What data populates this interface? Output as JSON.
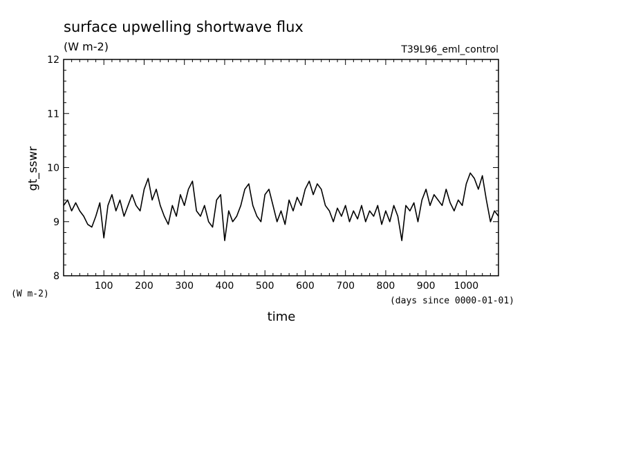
{
  "chart_data": {
    "type": "line",
    "title": "surface upwelling shortwave flux",
    "subtitle": "(W m-2)",
    "experiment": "T39L96_eml_control",
    "ylabel": "gt_sswr",
    "yunit": "(W m-2)",
    "xlabel": "time",
    "xunit": "(days since 0000-01-01)",
    "xlim": [
      0,
      1080
    ],
    "ylim": [
      8,
      12
    ],
    "x_ticks": [
      100,
      200,
      300,
      400,
      500,
      600,
      700,
      800,
      900,
      1000
    ],
    "y_ticks": [
      8,
      9,
      10,
      11,
      12
    ],
    "grid": false,
    "line_color": "#000000",
    "series": [
      {
        "x": [
          0,
          10,
          20,
          30,
          40,
          50,
          60,
          70,
          80,
          90,
          100,
          110,
          120,
          130,
          140,
          150,
          160,
          170,
          180,
          190,
          200,
          210,
          220,
          230,
          240,
          250,
          260,
          270,
          280,
          290,
          300,
          310,
          320,
          330,
          340,
          350,
          360,
          370,
          380,
          390,
          400,
          410,
          420,
          430,
          440,
          450,
          460,
          470,
          480,
          490,
          500,
          510,
          520,
          530,
          540,
          550,
          560,
          570,
          580,
          590,
          600,
          610,
          620,
          630,
          640,
          650,
          660,
          670,
          680,
          690,
          700,
          710,
          720,
          730,
          740,
          750,
          760,
          770,
          780,
          790,
          800,
          810,
          820,
          830,
          840,
          850,
          860,
          870,
          880,
          890,
          900,
          910,
          920,
          930,
          940,
          950,
          960,
          970,
          980,
          990,
          1000,
          1010,
          1020,
          1030,
          1040,
          1050,
          1060,
          1070,
          1080
        ],
        "values": [
          9.3,
          9.4,
          9.2,
          9.35,
          9.2,
          9.1,
          8.95,
          8.9,
          9.1,
          9.35,
          8.7,
          9.3,
          9.5,
          9.2,
          9.4,
          9.1,
          9.3,
          9.5,
          9.3,
          9.2,
          9.6,
          9.8,
          9.4,
          9.6,
          9.3,
          9.1,
          8.95,
          9.3,
          9.1,
          9.5,
          9.3,
          9.6,
          9.75,
          9.2,
          9.1,
          9.3,
          9.0,
          8.9,
          9.4,
          9.5,
          8.65,
          9.2,
          9.0,
          9.1,
          9.3,
          9.6,
          9.7,
          9.3,
          9.1,
          9.0,
          9.5,
          9.6,
          9.3,
          9.0,
          9.2,
          8.95,
          9.4,
          9.2,
          9.45,
          9.3,
          9.6,
          9.75,
          9.5,
          9.7,
          9.6,
          9.3,
          9.2,
          9.0,
          9.25,
          9.1,
          9.3,
          9.0,
          9.2,
          9.05,
          9.3,
          9.0,
          9.2,
          9.1,
          9.3,
          8.95,
          9.2,
          9.0,
          9.3,
          9.1,
          8.65,
          9.3,
          9.2,
          9.35,
          9.0,
          9.4,
          9.6,
          9.3,
          9.5,
          9.4,
          9.3,
          9.6,
          9.35,
          9.2,
          9.4,
          9.3,
          9.7,
          9.9,
          9.8,
          9.6,
          9.85,
          9.4,
          9.0,
          9.2,
          9.1
        ]
      }
    ]
  }
}
